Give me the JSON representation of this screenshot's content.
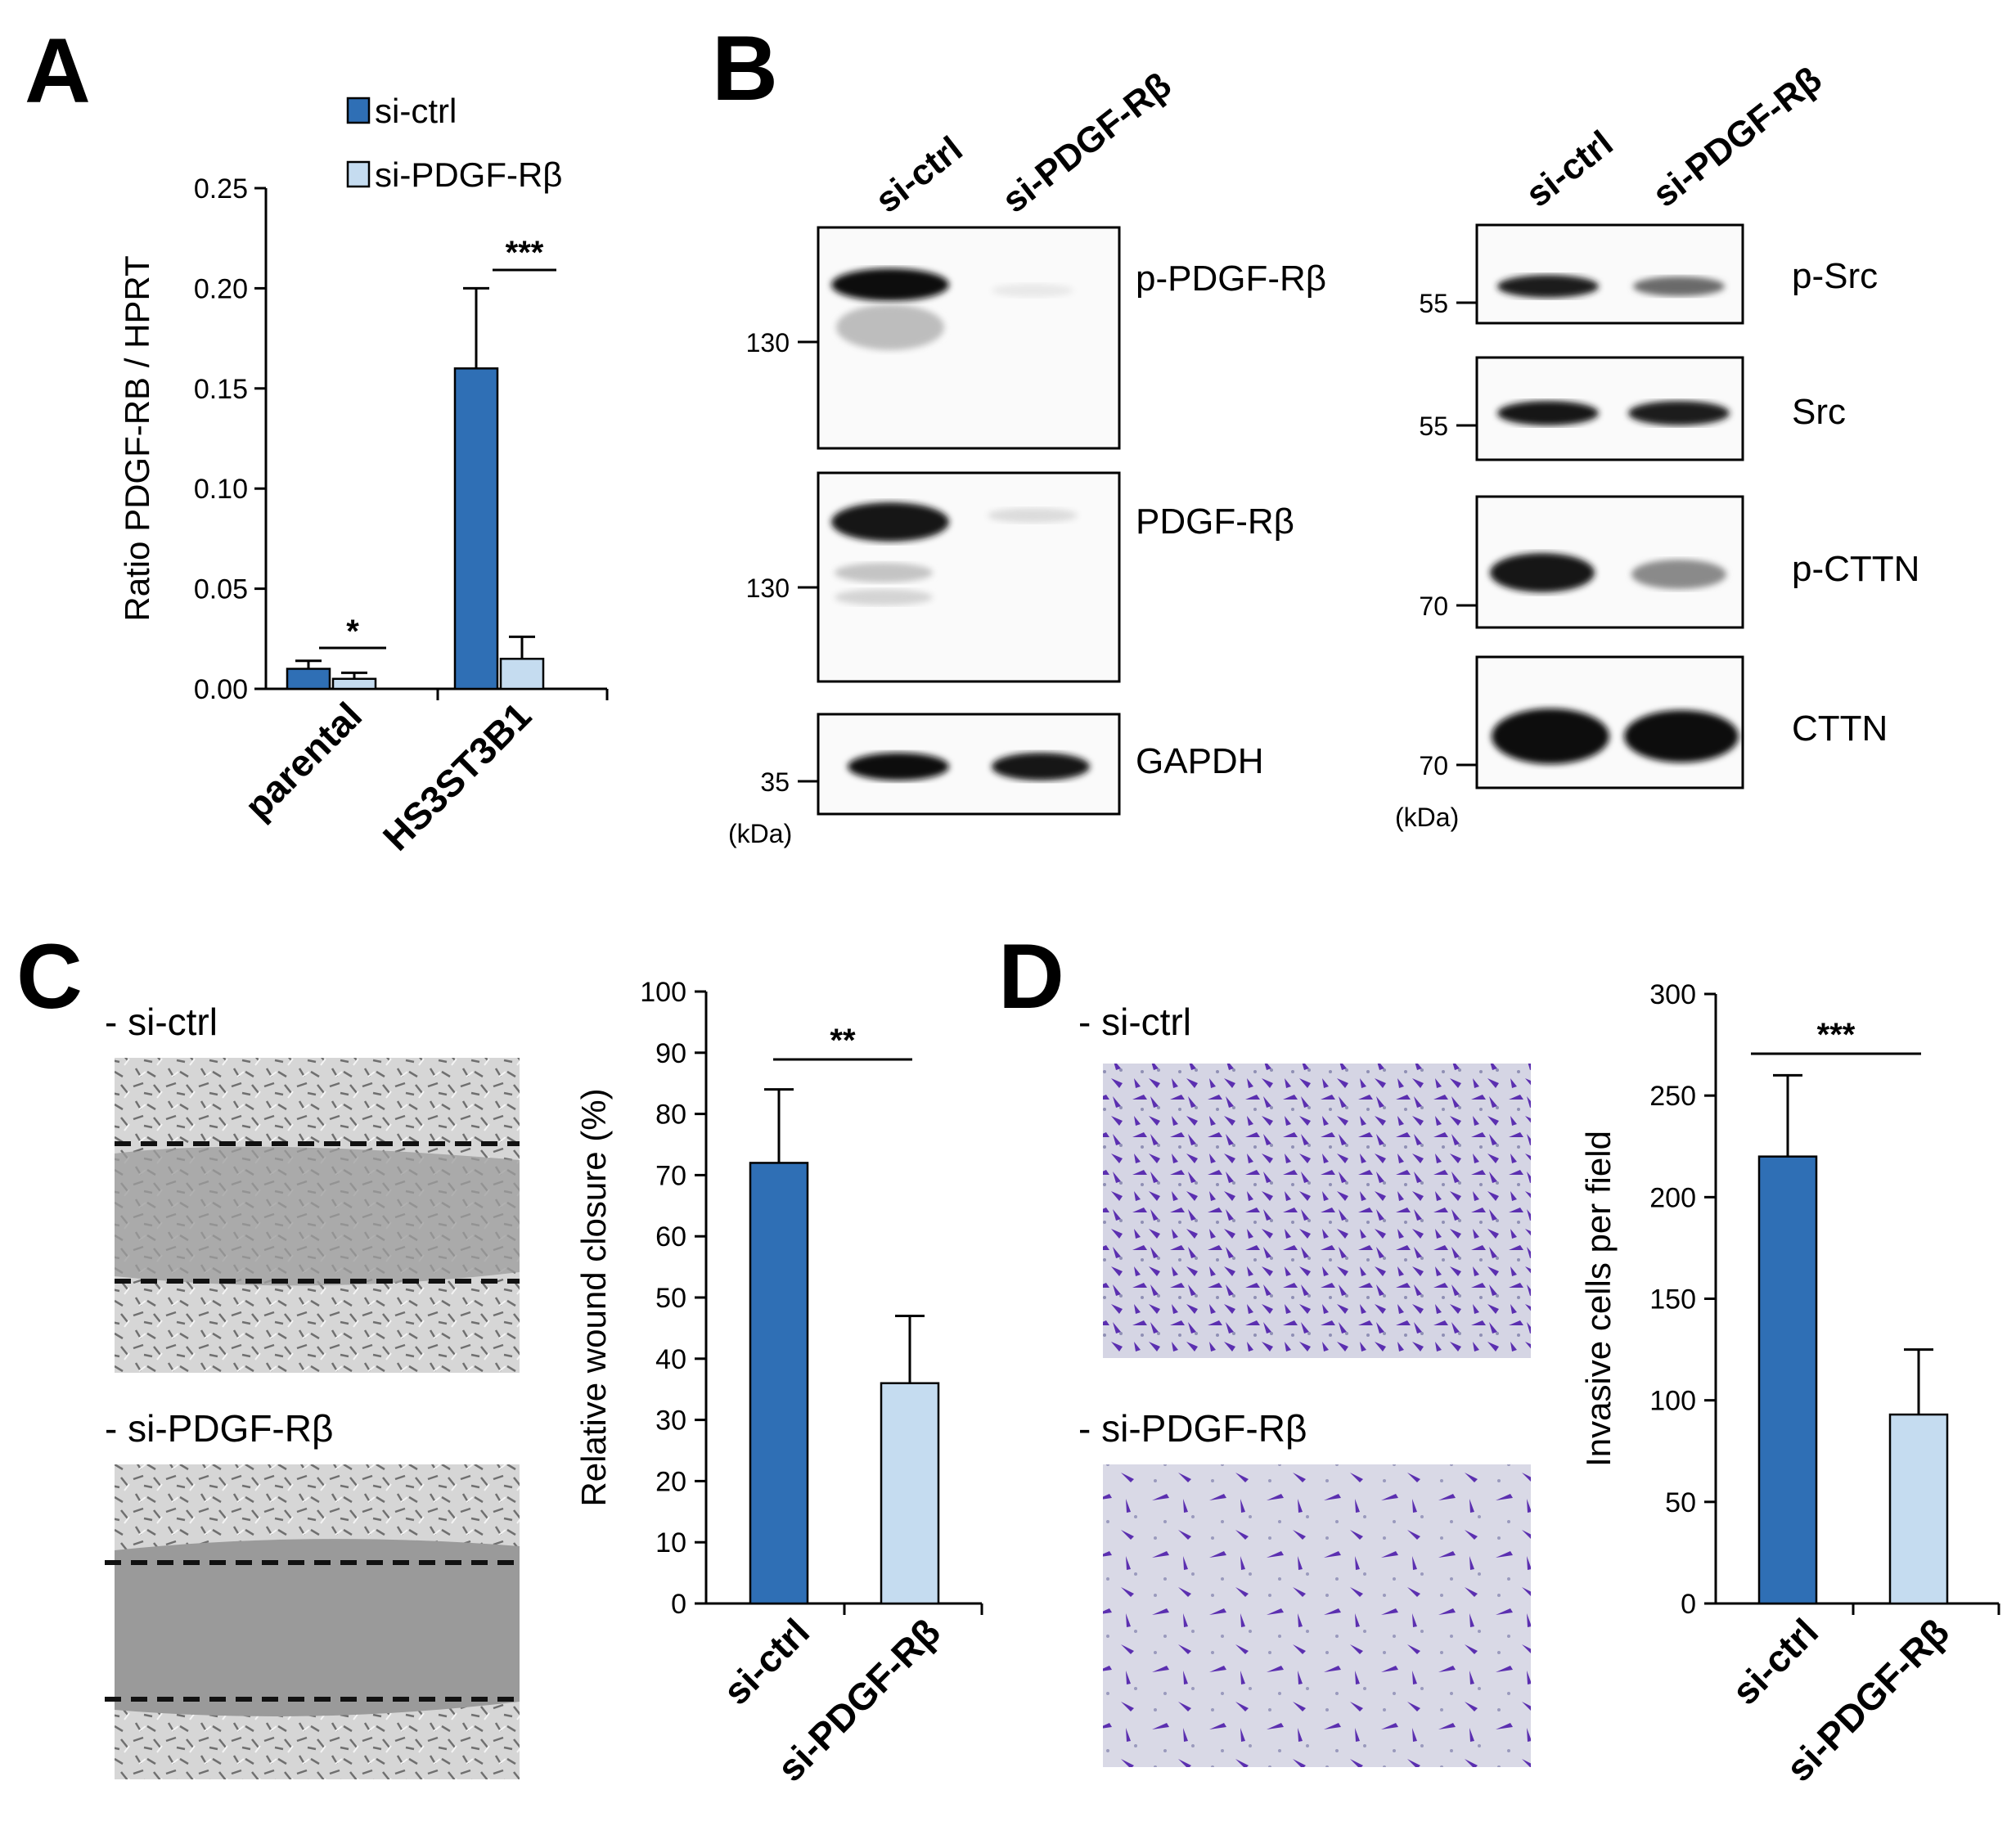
{
  "panels": {
    "A": "A",
    "B": "B",
    "C": "C",
    "D": "D"
  },
  "colors": {
    "si_ctrl": "#2f6fb5",
    "si_pdgf": "#c5dcf0",
    "axis": "#000000"
  },
  "chart_data": [
    {
      "panel": "A",
      "type": "bar",
      "categories": [
        "parental",
        "HS3ST3B1"
      ],
      "series": [
        {
          "name": "si-ctrl",
          "values": [
            0.01,
            0.16
          ],
          "errors": [
            0.004,
            0.04
          ]
        },
        {
          "name": "si-PDGF-Rβ",
          "values": [
            0.005,
            0.015
          ],
          "errors": [
            0.003,
            0.011
          ]
        }
      ],
      "ylabel": "Ratio PDGF-RB / HPRT",
      "ylim": [
        0,
        0.25
      ],
      "yticks": [
        "0.00",
        "0.05",
        "0.10",
        "0.15",
        "0.20",
        "0.25"
      ],
      "legend": [
        "si-ctrl",
        "si-PDGF-Rβ"
      ],
      "legend_position": "top",
      "significance": [
        "*",
        "***"
      ],
      "grid": false
    },
    {
      "panel": "C",
      "type": "bar",
      "categories": [
        "si-ctrl",
        "si-PDGF-Rβ"
      ],
      "values": [
        72,
        36
      ],
      "errors": [
        12,
        11
      ],
      "ylabel": "Relative wound closure (%)",
      "ylim": [
        0,
        100
      ],
      "yticks": [
        "0",
        "10",
        "20",
        "30",
        "40",
        "50",
        "60",
        "70",
        "80",
        "90",
        "100"
      ],
      "significance": "**",
      "grid": false
    },
    {
      "panel": "D",
      "type": "bar",
      "categories": [
        "si-ctrl",
        "si-PDGF-Rβ"
      ],
      "values": [
        220,
        93
      ],
      "errors": [
        40,
        32
      ],
      "ylabel": "Invasive cells per field",
      "ylim": [
        0,
        300
      ],
      "yticks": [
        "0",
        "50",
        "100",
        "150",
        "200",
        "250",
        "300"
      ],
      "significance": "***",
      "grid": false
    }
  ],
  "blots": {
    "left": {
      "lanes": [
        "si-ctrl",
        "si-PDGF-Rβ"
      ],
      "rows": [
        {
          "label": "p-PDGF-Rβ",
          "mw": "130"
        },
        {
          "label": "PDGF-Rβ",
          "mw": "130"
        },
        {
          "label": "GAPDH",
          "mw": "35"
        }
      ],
      "unit": "(kDa)"
    },
    "right": {
      "lanes": [
        "si-ctrl",
        "si-PDGF-Rβ"
      ],
      "rows": [
        {
          "label": "p-Src",
          "mw": "55"
        },
        {
          "label": "Src",
          "mw": "55"
        },
        {
          "label": "p-CTTN",
          "mw": "70"
        },
        {
          "label": "CTTN",
          "mw": "70"
        }
      ],
      "unit": "(kDa)"
    }
  },
  "images": {
    "C": {
      "top_label": "- si-ctrl",
      "bottom_label": "- si-PDGF-Rβ"
    },
    "D": {
      "top_label": "- si-ctrl",
      "bottom_label": "- si-PDGF-Rβ"
    }
  }
}
